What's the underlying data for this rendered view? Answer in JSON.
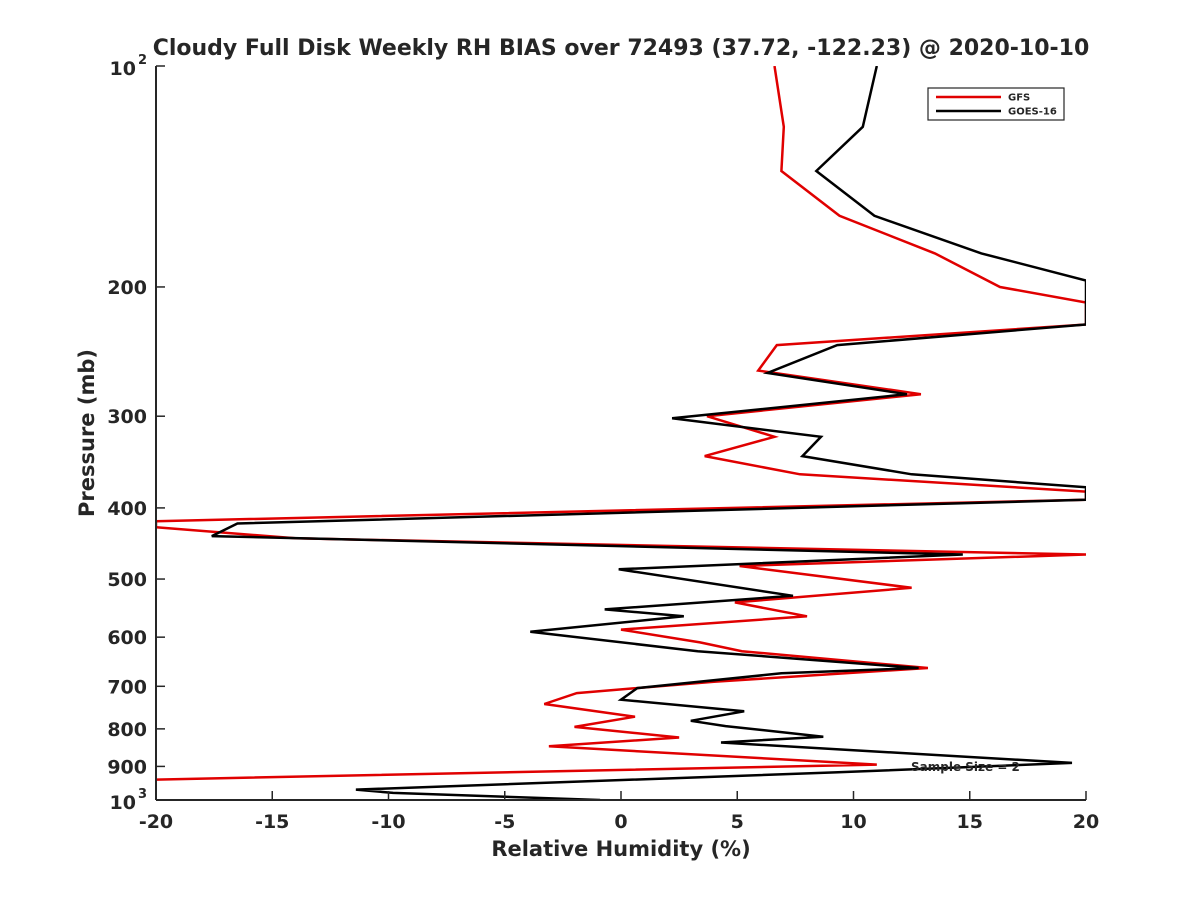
{
  "chart_data": {
    "type": "line",
    "title": "Cloudy Full Disk Weekly RH BIAS over 72493 (37.72, -122.23) @ 2020-10-10",
    "xlabel": "Relative Humidity (%)",
    "ylabel": "Pressure (mb)",
    "xlim": [
      -20,
      20
    ],
    "ylim": [
      100,
      1000
    ],
    "y_scale": "log",
    "y_reversed": true,
    "grid": false,
    "legend_position": "top-right",
    "annotation": "Sample Size = 2",
    "xticks": [
      -20,
      -15,
      -10,
      -5,
      0,
      5,
      10,
      15,
      20
    ],
    "xtick_labels": [
      "-20",
      "-15",
      "-10",
      "-5",
      "0",
      "5",
      "10",
      "15",
      "20"
    ],
    "yticks": [
      100,
      200,
      300,
      400,
      500,
      600,
      700,
      800,
      900,
      1000
    ],
    "ytick_labels": [
      {
        "base": "10",
        "exp": "2"
      },
      {
        "base": "200",
        "exp": ""
      },
      {
        "base": "300",
        "exp": ""
      },
      {
        "base": "400",
        "exp": ""
      },
      {
        "base": "500",
        "exp": ""
      },
      {
        "base": "600",
        "exp": ""
      },
      {
        "base": "700",
        "exp": ""
      },
      {
        "base": "800",
        "exp": ""
      },
      {
        "base": "900",
        "exp": ""
      },
      {
        "base": "10",
        "exp": "3"
      }
    ],
    "series": [
      {
        "name": "GFS",
        "color": "#e00000",
        "points": [
          {
            "x": 6.6,
            "y": 100
          },
          {
            "x": 7.0,
            "y": 121
          },
          {
            "x": 6.9,
            "y": 139
          },
          {
            "x": 9.4,
            "y": 160
          },
          {
            "x": 13.5,
            "y": 180
          },
          {
            "x": 16.3,
            "y": 200
          },
          {
            "x": 20.0,
            "y": 210
          },
          {
            "x": 20.0,
            "y": 225
          },
          {
            "x": 6.7,
            "y": 240
          },
          {
            "x": 5.9,
            "y": 260
          },
          {
            "x": 12.9,
            "y": 280
          },
          {
            "x": 3.7,
            "y": 300
          },
          {
            "x": 6.6,
            "y": 320
          },
          {
            "x": 3.6,
            "y": 340
          },
          {
            "x": 7.7,
            "y": 360
          },
          {
            "x": 20.0,
            "y": 380
          },
          {
            "x": 20.0,
            "y": 390
          },
          {
            "x": -20.0,
            "y": 417
          },
          {
            "x": -20.0,
            "y": 425
          },
          {
            "x": -14.0,
            "y": 440
          },
          {
            "x": 20.0,
            "y": 463
          },
          {
            "x": 5.1,
            "y": 480
          },
          {
            "x": 12.5,
            "y": 514
          },
          {
            "x": 4.9,
            "y": 538
          },
          {
            "x": 8.0,
            "y": 562
          },
          {
            "x": 0.0,
            "y": 586
          },
          {
            "x": 3.4,
            "y": 610
          },
          {
            "x": 5.2,
            "y": 627
          },
          {
            "x": 13.2,
            "y": 661
          },
          {
            "x": 4.0,
            "y": 690
          },
          {
            "x": -1.9,
            "y": 715
          },
          {
            "x": -3.3,
            "y": 740
          },
          {
            "x": 0.6,
            "y": 770
          },
          {
            "x": -2.0,
            "y": 795
          },
          {
            "x": 2.5,
            "y": 822
          },
          {
            "x": -3.1,
            "y": 845
          },
          {
            "x": 11.0,
            "y": 895
          },
          {
            "x": -3.8,
            "y": 915
          },
          {
            "x": -20.0,
            "y": 938
          }
        ]
      },
      {
        "name": "GOES-16",
        "color": "#000000",
        "points": [
          {
            "x": 11.0,
            "y": 100
          },
          {
            "x": 10.4,
            "y": 121
          },
          {
            "x": 8.4,
            "y": 139
          },
          {
            "x": 10.9,
            "y": 160
          },
          {
            "x": 15.5,
            "y": 180
          },
          {
            "x": 20.0,
            "y": 196
          },
          {
            "x": 20.0,
            "y": 225
          },
          {
            "x": 9.3,
            "y": 240
          },
          {
            "x": 6.3,
            "y": 262
          },
          {
            "x": 12.3,
            "y": 280
          },
          {
            "x": 2.2,
            "y": 302
          },
          {
            "x": 8.6,
            "y": 320
          },
          {
            "x": 7.8,
            "y": 340
          },
          {
            "x": 12.5,
            "y": 360
          },
          {
            "x": 20.0,
            "y": 375
          },
          {
            "x": 20.0,
            "y": 390
          },
          {
            "x": -16.5,
            "y": 420
          },
          {
            "x": -17.6,
            "y": 437
          },
          {
            "x": 14.7,
            "y": 463
          },
          {
            "x": -0.1,
            "y": 485
          },
          {
            "x": 7.4,
            "y": 527
          },
          {
            "x": -0.7,
            "y": 550
          },
          {
            "x": 2.7,
            "y": 562
          },
          {
            "x": -3.9,
            "y": 590
          },
          {
            "x": 3.3,
            "y": 627
          },
          {
            "x": 12.8,
            "y": 661
          },
          {
            "x": 6.9,
            "y": 672
          },
          {
            "x": 0.7,
            "y": 704
          },
          {
            "x": 0.0,
            "y": 730
          },
          {
            "x": 5.3,
            "y": 757
          },
          {
            "x": 3.0,
            "y": 780
          },
          {
            "x": 4.5,
            "y": 793
          },
          {
            "x": 8.7,
            "y": 820
          },
          {
            "x": 4.3,
            "y": 835
          },
          {
            "x": 19.4,
            "y": 890
          },
          {
            "x": 9.2,
            "y": 917
          },
          {
            "x": -11.4,
            "y": 968
          },
          {
            "x": -9.8,
            "y": 978
          },
          {
            "x": -0.9,
            "y": 1000
          }
        ]
      }
    ]
  }
}
